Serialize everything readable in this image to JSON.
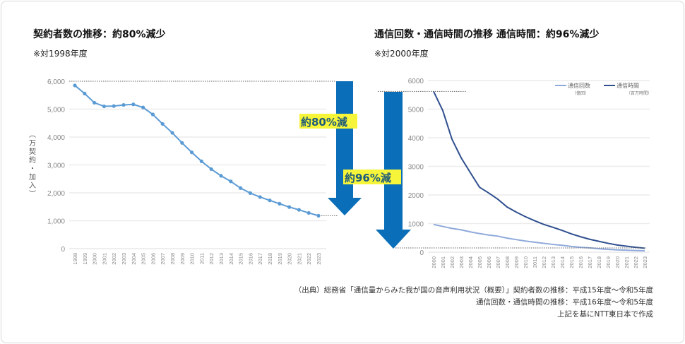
{
  "left": {
    "title": "契約者数の推移：約80%減少",
    "note": "※対1998年度",
    "reduction_label": "約80%減"
  },
  "right": {
    "title": "通信回数・通信時間の推移 通信時間：約96%減少",
    "note": "※対2000年度",
    "reduction_label": "約96%減"
  },
  "source": {
    "line1": "（出典）総務省「通信量からみた我が国の音声利用状況（概要）」契約者数の推移：平成15年度～令和5年度",
    "line2": "通信回数・通信時間の推移：平成16年度～令和5年度",
    "line3": "上記を基にNTT東日本で作成"
  },
  "colors": {
    "arrow": "#0a6fb8",
    "highlight": "#f7f53a",
    "line_left": "#5b9bd5",
    "series_calls": "#8ea9db",
    "series_time": "#2f4f8f"
  },
  "chart_data": [
    {
      "type": "line",
      "ylabel": "（万契約・加入）",
      "ylim": [
        0,
        6000
      ],
      "yticks": [
        "0",
        "1,000",
        "2,000",
        "3,000",
        "4,000",
        "5,000",
        "6,000"
      ],
      "x": [
        "1998",
        "1999",
        "2000",
        "2001",
        "2002",
        "2003",
        "2004",
        "2005",
        "2006",
        "2007",
        "2008",
        "2009",
        "2010",
        "2011",
        "2012",
        "2013",
        "2014",
        "2015",
        "2016",
        "2017",
        "2018",
        "2019",
        "2020",
        "2021",
        "2022",
        "2023"
      ],
      "values": [
        5850,
        5560,
        5230,
        5100,
        5110,
        5150,
        5170,
        5060,
        4810,
        4470,
        4150,
        3790,
        3450,
        3130,
        2850,
        2610,
        2410,
        2170,
        1990,
        1850,
        1730,
        1610,
        1490,
        1390,
        1280,
        1180
      ],
      "grid": true,
      "markers": true
    },
    {
      "type": "line",
      "ylim": [
        0,
        6000
      ],
      "yticks": [
        "0",
        "1000",
        "2000",
        "3000",
        "4000",
        "5000",
        "6000"
      ],
      "x": [
        "2000",
        "2001",
        "2002",
        "2003",
        "2004",
        "2005",
        "2006",
        "2007",
        "2008",
        "2009",
        "2010",
        "2011",
        "2012",
        "2013",
        "2014",
        "2015",
        "2016",
        "2017",
        "2018",
        "2019",
        "2020",
        "2021",
        "2022",
        "2023"
      ],
      "legend_position": "top-right",
      "series": [
        {
          "name": "通信回数",
          "unit": "（億回）",
          "values": [
            970,
            900,
            830,
            780,
            710,
            650,
            600,
            560,
            490,
            440,
            390,
            350,
            310,
            270,
            240,
            200,
            170,
            150,
            120,
            100,
            80,
            70,
            60,
            50
          ]
        },
        {
          "name": "通信時間",
          "unit": "（百万時間）",
          "values": [
            5620,
            4950,
            3950,
            3300,
            2780,
            2270,
            2070,
            1850,
            1580,
            1400,
            1240,
            1100,
            970,
            870,
            760,
            640,
            540,
            450,
            380,
            310,
            250,
            210,
            170,
            140
          ]
        }
      ],
      "grid": true
    }
  ]
}
